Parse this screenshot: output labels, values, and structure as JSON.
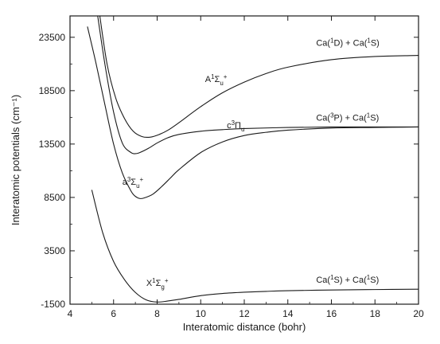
{
  "chart_data": {
    "type": "line",
    "xlabel": "Interatomic distance (bohr)",
    "ylabel": "Interatomic potentials  (cm⁻¹)",
    "xlim": [
      4,
      20
    ],
    "ylim": [
      -1500,
      25500
    ],
    "xticks": [
      4,
      6,
      8,
      10,
      12,
      14,
      16,
      18,
      20
    ],
    "yticks": [
      -1500,
      3500,
      8500,
      13500,
      18500,
      23500
    ],
    "grid": false,
    "legend": "none",
    "series": [
      {
        "key": "X",
        "x": [
          5.0,
          5.5,
          6.0,
          6.5,
          7.0,
          7.5,
          8.0,
          8.5,
          9.0,
          10.0,
          11.0,
          12.0,
          13.0,
          14.0,
          16.0,
          18.0,
          20.0
        ],
        "y": [
          9200,
          5200,
          2500,
          800,
          -400,
          -1100,
          -1300,
          -1200,
          -1050,
          -700,
          -500,
          -380,
          -300,
          -240,
          -170,
          -130,
          -100
        ]
      },
      {
        "key": "a",
        "x": [
          4.8,
          5.2,
          5.6,
          6.0,
          6.4,
          6.8,
          7.0,
          7.2,
          7.4,
          7.8,
          8.2,
          8.6,
          9.0,
          10.0,
          11.0,
          12.0,
          13.0,
          14.0,
          16.0,
          18.0,
          20.0
        ],
        "y": [
          24500,
          21000,
          17200,
          13500,
          10800,
          9100,
          8600,
          8400,
          8450,
          8800,
          9500,
          10300,
          11100,
          12700,
          13700,
          14300,
          14600,
          14800,
          15000,
          15050,
          15100
        ]
      },
      {
        "key": "c",
        "x": [
          5.2,
          5.6,
          6.0,
          6.4,
          6.8,
          7.0,
          7.2,
          7.6,
          8.0,
          8.5,
          9.0,
          10.0,
          11.0,
          12.0,
          14.0,
          16.0,
          18.0,
          20.0
        ],
        "y": [
          26500,
          21000,
          16500,
          13600,
          12700,
          12600,
          12700,
          13100,
          13600,
          14100,
          14400,
          14700,
          14850,
          14950,
          15050,
          15100,
          15100,
          15100
        ]
      },
      {
        "key": "A",
        "x": [
          5.3,
          5.7,
          6.1,
          6.5,
          6.9,
          7.3,
          7.7,
          8.1,
          8.5,
          9.0,
          10.0,
          11.0,
          12.0,
          13.0,
          14.0,
          16.0,
          18.0,
          20.0
        ],
        "y": [
          26500,
          21000,
          17800,
          15900,
          14700,
          14200,
          14150,
          14400,
          14800,
          15500,
          17000,
          18300,
          19300,
          20100,
          20700,
          21400,
          21700,
          21800
        ]
      }
    ],
    "annotations": [
      {
        "id": "A",
        "text": "A",
        "sup": "1",
        "sym": "Σ",
        "sub": "u",
        "sup2": "+",
        "x": 10.2,
        "y": 19300
      },
      {
        "id": "c",
        "text": "c",
        "sup": "3",
        "sym": "Π",
        "sub": "u",
        "sup2": "",
        "x": 11.2,
        "y": 15000
      },
      {
        "id": "a",
        "text": "a",
        "sup": "3",
        "sym": "Σ",
        "sub": "u",
        "sup2": "+",
        "x": 6.4,
        "y": 9700
      },
      {
        "id": "X",
        "text": "X",
        "sup": "1",
        "sym": "Σ",
        "sub": "g",
        "sup2": "+",
        "x": 7.5,
        "y": 200
      },
      {
        "id": "asym_D",
        "pre": "Ca(",
        "sup1": "1",
        "mid": "D) + Ca(",
        "sup2": "1",
        "post": "S)",
        "x": 15.3,
        "y": 22700
      },
      {
        "id": "asym_P",
        "pre": "Ca(",
        "sup1": "3",
        "mid": "P) + Ca(",
        "sup2": "1",
        "post": "S)",
        "x": 15.3,
        "y": 15700
      },
      {
        "id": "asym_S",
        "pre": "Ca(",
        "sup1": "1",
        "mid": "S) + Ca(",
        "sup2": "1",
        "post": "S)",
        "x": 15.3,
        "y": 500
      }
    ]
  }
}
